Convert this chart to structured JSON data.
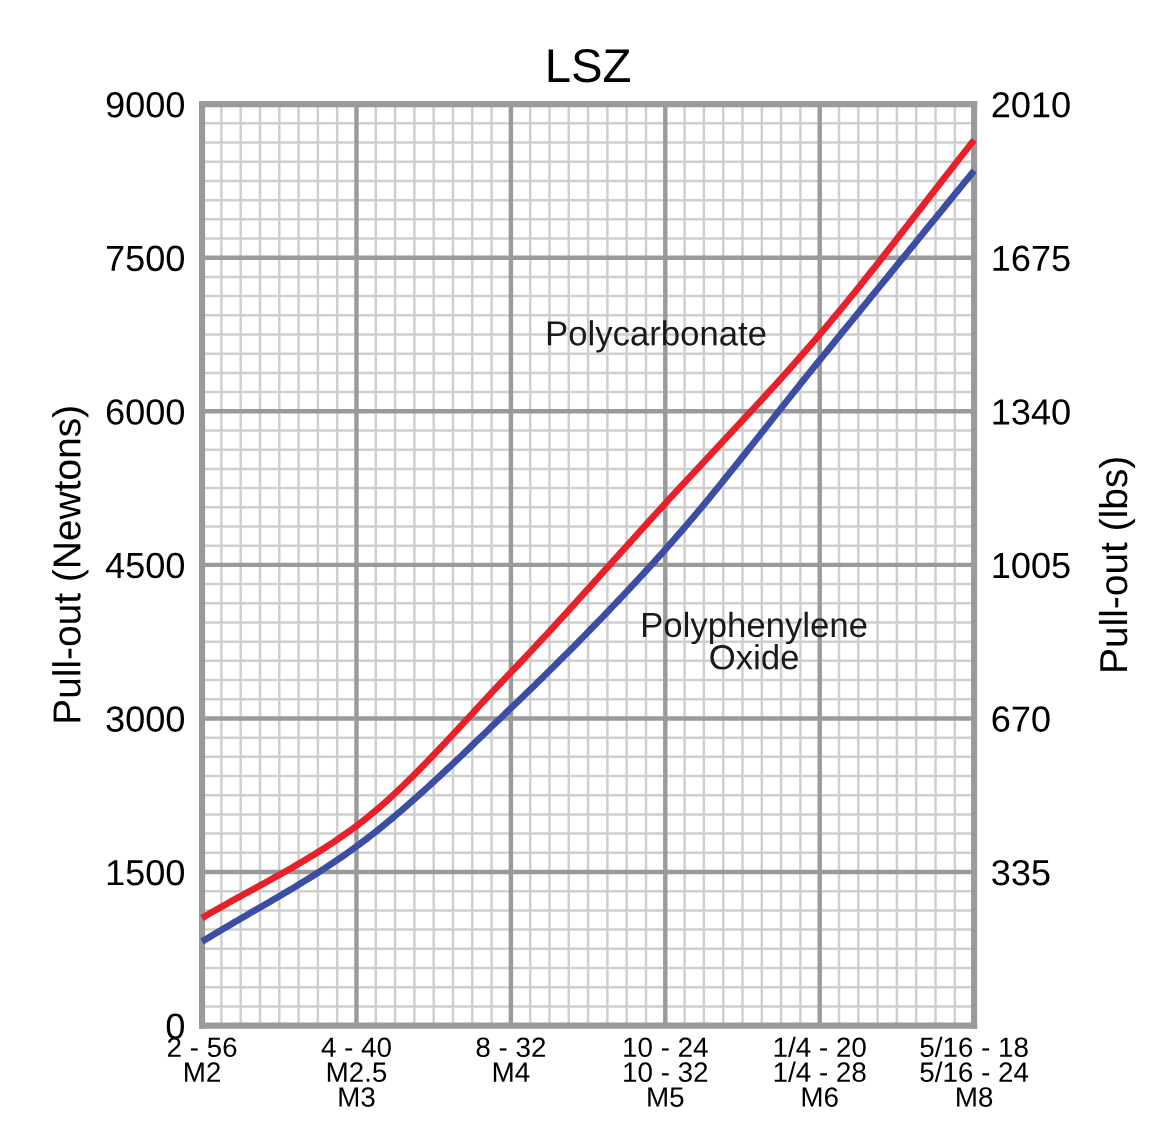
{
  "chart_data": {
    "type": "line",
    "title": "LSZ",
    "ylabel": "Pull-out (Newtons)",
    "y2label": "Pull-out (lbs)",
    "categories": [
      "2 - 56\nM2",
      "4 - 40\nM2.5\nM3",
      "8 - 32\nM4",
      "10 - 24\n10 - 32\nM5",
      "1/4 - 20\n1/4 - 28\nM6",
      "5/16 - 18\n5/16 - 24\nM8"
    ],
    "series": [
      {
        "name": "Polycarbonate",
        "color": "#e8202a",
        "values": [
          1050,
          1950,
          3450,
          5100,
          6750,
          8650
        ]
      },
      {
        "name": "Polyphenylene\nOxide",
        "color": "#3b4ea3",
        "values": [
          820,
          1750,
          3100,
          4650,
          6500,
          8350
        ]
      }
    ],
    "ylim": [
      0,
      9000
    ],
    "yticks": [
      0,
      1500,
      3000,
      4500,
      6000,
      7500,
      9000
    ],
    "y2lim": [
      0,
      2010
    ],
    "y2ticks": [
      335,
      670,
      1005,
      1340,
      1675,
      2010
    ],
    "grid": true,
    "marker": "none",
    "line_style": "solid"
  }
}
